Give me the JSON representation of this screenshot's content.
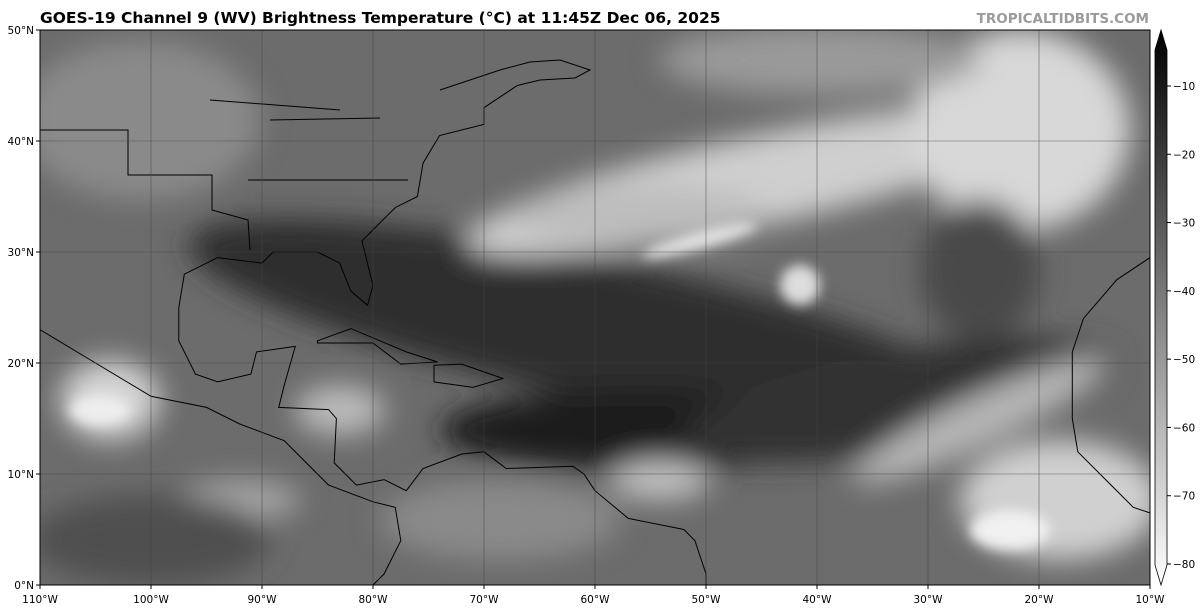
{
  "header": {
    "title": "GOES-19 Channel 9 (WV) Brightness Temperature (°C) at 11:45Z Dec 06, 2025",
    "credit": "TROPICALTIDBITS.COM"
  },
  "map": {
    "type": "satellite-water-vapor-imagery",
    "extent": {
      "lon": [
        -110,
        -10
      ],
      "lat": [
        0,
        50
      ]
    },
    "grid": true,
    "lat_ticks": [
      "0°N",
      "10°N",
      "20°N",
      "30°N",
      "40°N",
      "50°N"
    ],
    "lon_ticks": [
      "110°W",
      "100°W",
      "90°W",
      "80°W",
      "70°W",
      "60°W",
      "50°W",
      "40°W",
      "30°W",
      "20°W",
      "10°W"
    ],
    "colormap": "grayscale (warm = black, cold = white)"
  },
  "colorbar": {
    "range": [
      -82,
      -5
    ],
    "ticks": [
      "−10",
      "−20",
      "−30",
      "−40",
      "−50",
      "−60",
      "−70",
      "−80"
    ],
    "tick_values": [
      -10,
      -20,
      -30,
      -40,
      -50,
      -60,
      -70,
      -80
    ],
    "colors": {
      "warm": "#000000",
      "cold": "#ffffff"
    }
  }
}
